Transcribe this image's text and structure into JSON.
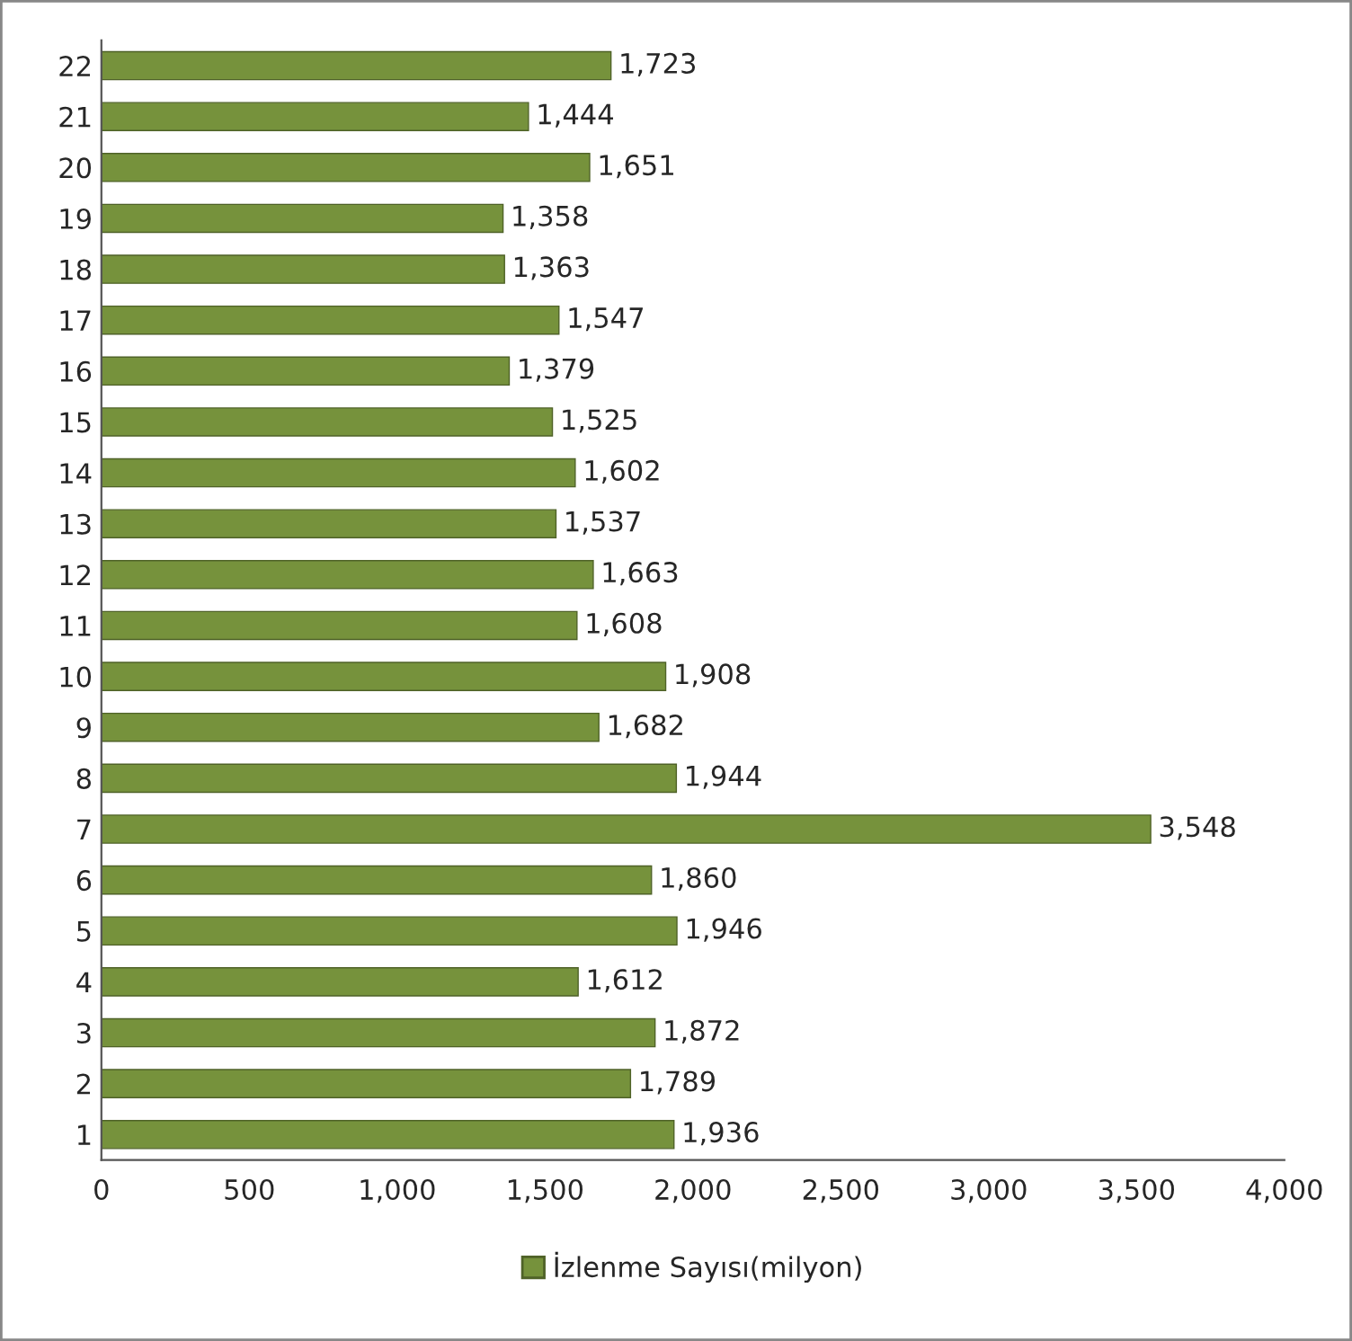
{
  "chart_data": {
    "type": "bar",
    "orientation": "horizontal",
    "categories": [
      "22",
      "21",
      "20",
      "19",
      "18",
      "17",
      "16",
      "15",
      "14",
      "13",
      "12",
      "11",
      "10",
      "9",
      "8",
      "7",
      "6",
      "5",
      "4",
      "3",
      "2",
      "1"
    ],
    "series": [
      {
        "name": "İzlenme Sayısı(milyon)",
        "color": "#76923c",
        "values": [
          1723,
          1444,
          1651,
          1358,
          1363,
          1547,
          1379,
          1525,
          1602,
          1537,
          1663,
          1608,
          1908,
          1682,
          1944,
          3548,
          1860,
          1946,
          1612,
          1872,
          1789,
          1936
        ],
        "value_labels": [
          "1,723",
          "1,444",
          "1,651",
          "1,358",
          "1,363",
          "1,547",
          "1,379",
          "1,525",
          "1,602",
          "1,537",
          "1,663",
          "1,608",
          "1,908",
          "1,682",
          "1,944",
          "3,548",
          "1,860",
          "1,946",
          "1,612",
          "1,872",
          "1,789",
          "1,936"
        ]
      }
    ],
    "xlim": [
      0,
      4000
    ],
    "xticks": [
      0,
      500,
      {
        "value": 1000,
        "label": "1,000"
      },
      {
        "value": 1500,
        "label": "1,500"
      },
      {
        "value": 2000,
        "label": "2,000"
      },
      {
        "value": 2500,
        "label": "2,500"
      },
      {
        "value": 3000,
        "label": "3,000"
      },
      {
        "value": 3500,
        "label": "3,500"
      },
      {
        "value": 4000,
        "label": "4,000"
      }
    ],
    "grid": false,
    "legend": "bottom"
  }
}
